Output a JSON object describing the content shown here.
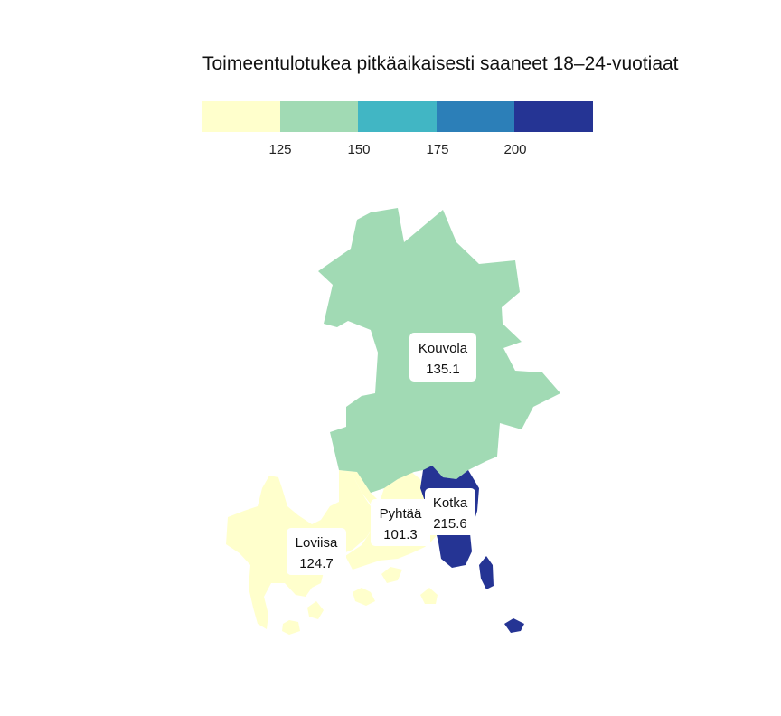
{
  "map": {
    "title": "Toimeentulotukea pitkäaikaisesti saaneet 18–24-vuotiaat",
    "legend": {
      "bins": [
        {
          "color": "#ffffcc"
        },
        {
          "color": "#a1dab4"
        },
        {
          "color": "#41b6c4"
        },
        {
          "color": "#2c7fb8"
        },
        {
          "color": "#253494"
        }
      ],
      "breaks": [
        "125",
        "150",
        "175",
        "200"
      ]
    },
    "regions": [
      {
        "name": "Kouvola",
        "value": "135.1",
        "color": "#a1dab4"
      },
      {
        "name": "Pyhtää",
        "value": "101.3",
        "color": "#ffffcc"
      },
      {
        "name": "Kotka",
        "value": "215.6",
        "color": "#253494"
      },
      {
        "name": "Loviisa",
        "value": "124.7",
        "color": "#ffffcc"
      }
    ]
  }
}
